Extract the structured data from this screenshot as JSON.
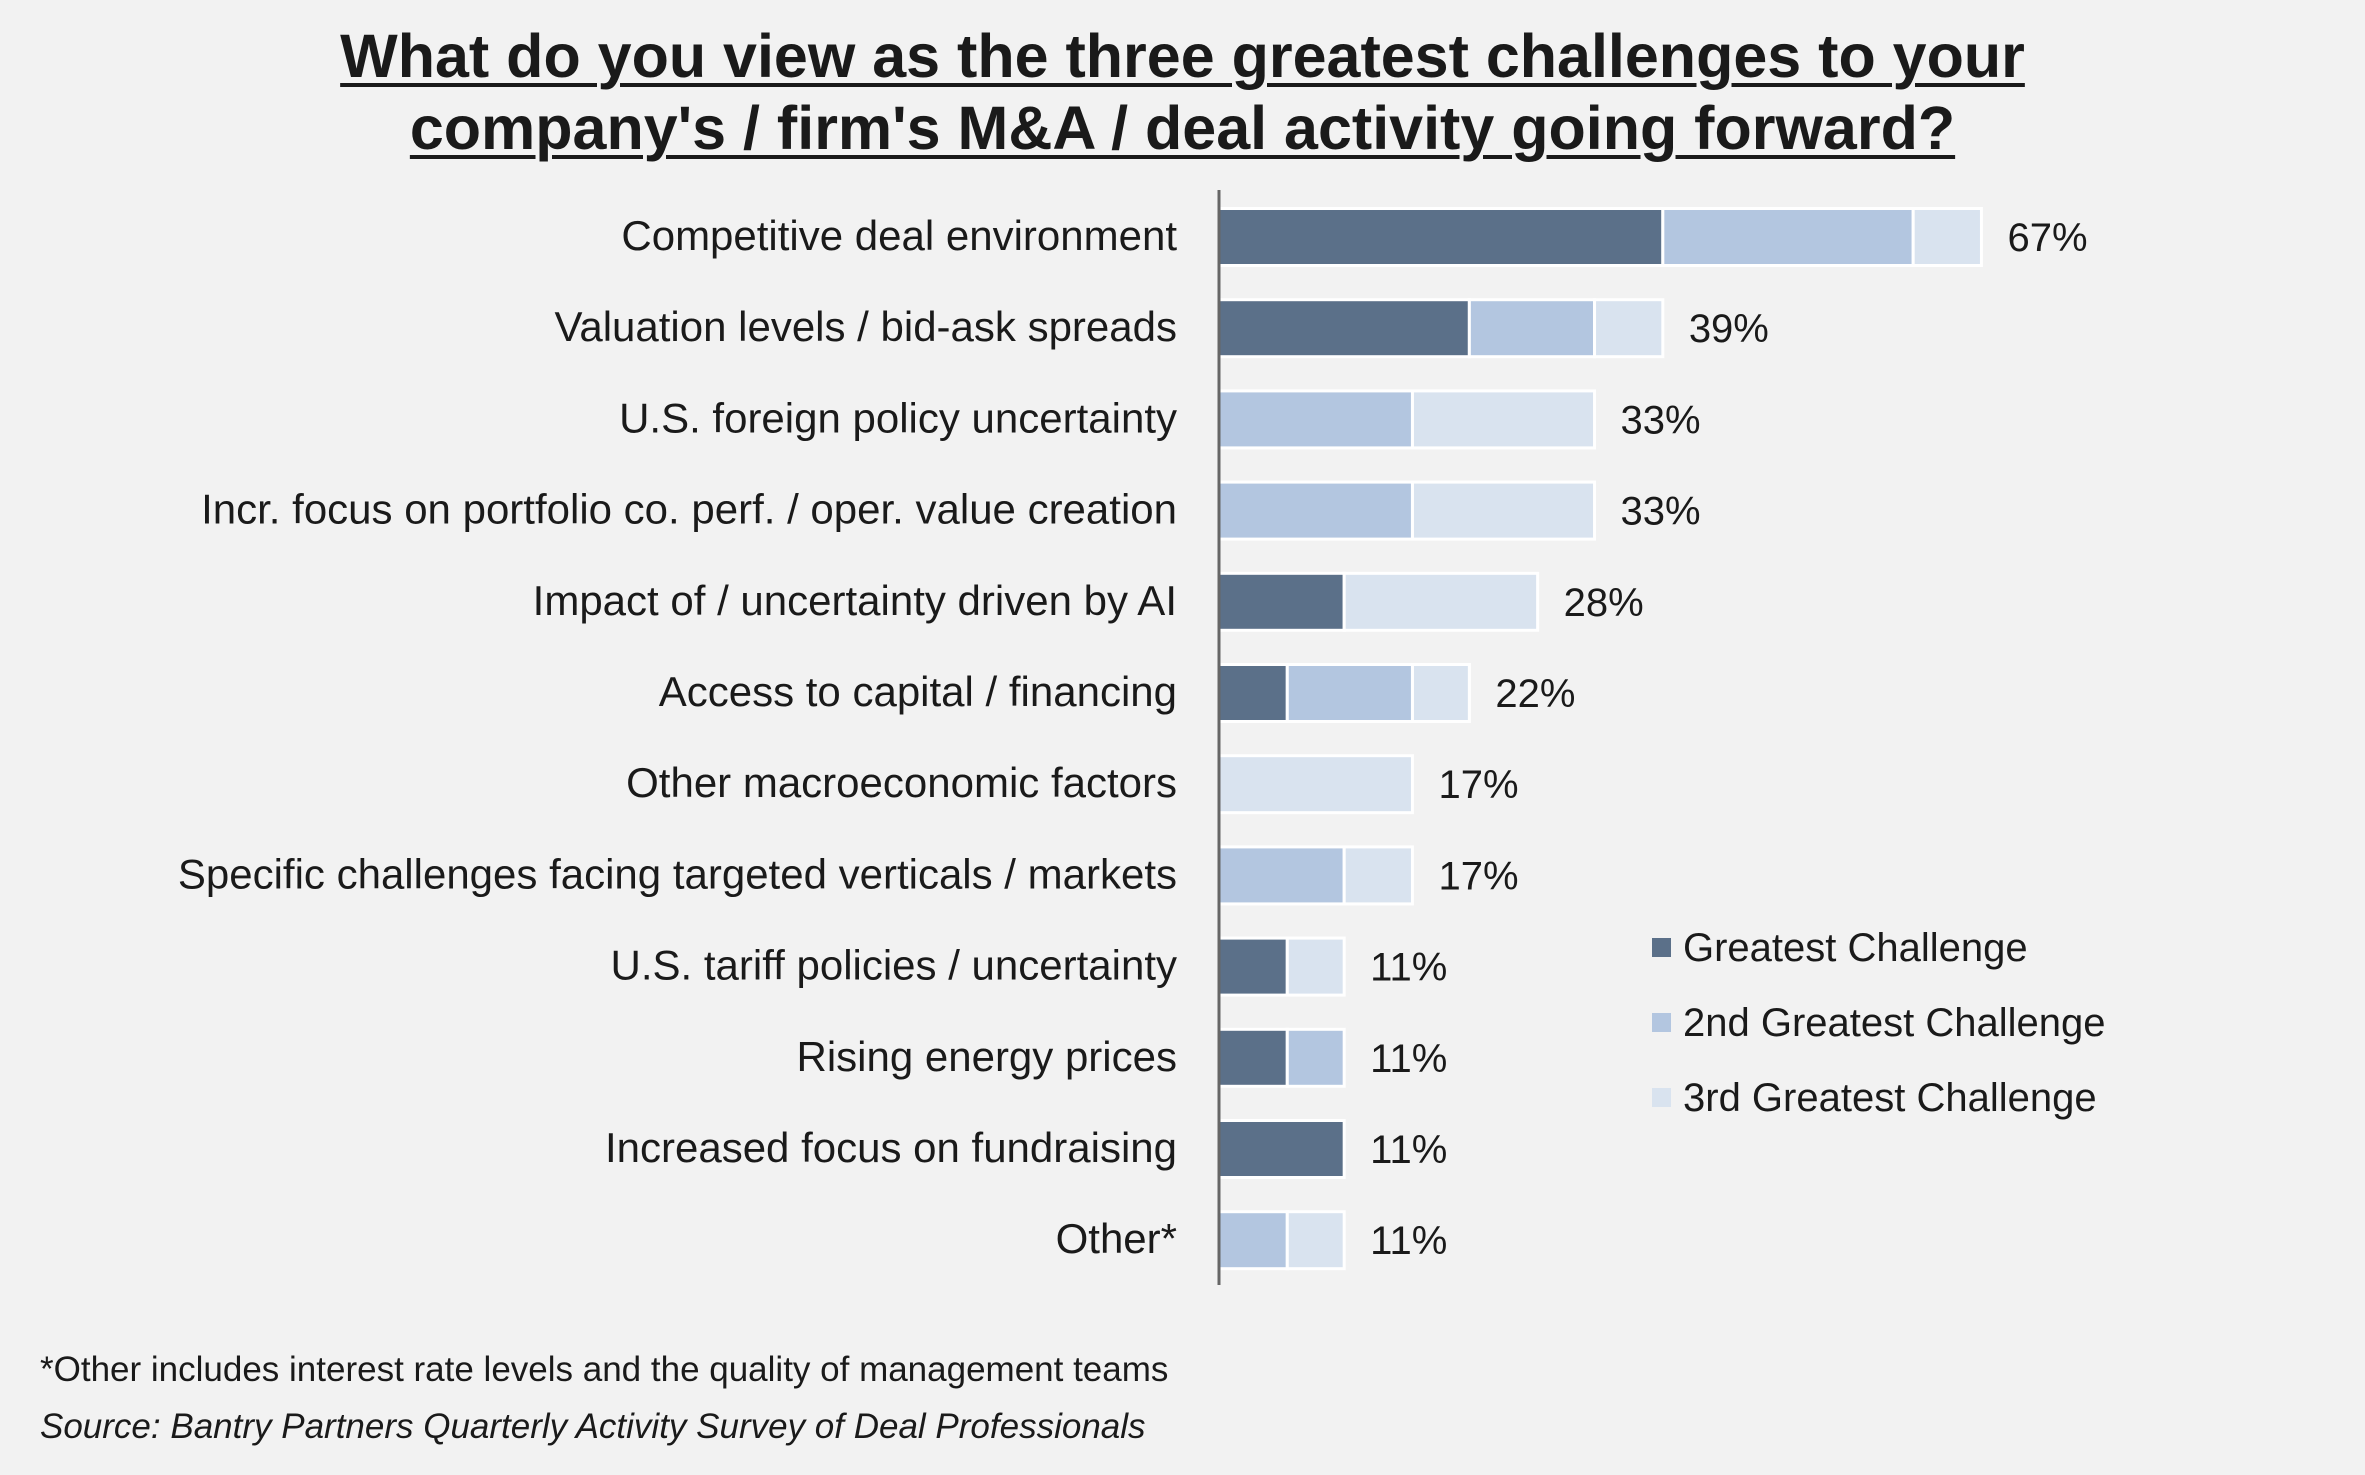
{
  "chart_data": {
    "type": "bar",
    "orientation": "horizontal",
    "stacked": true,
    "title_lines": [
      "What do you view as the three greatest challenges to your",
      "company's / firm's M&A / deal activity going forward?"
    ],
    "categories": [
      "Competitive deal environment",
      "Valuation levels / bid-ask spreads",
      "U.S. foreign policy uncertainty",
      "Incr. focus on portfolio co. perf. / oper. value creation",
      "Impact of / uncertainty driven by AI",
      "Access to capital / financing",
      "Other macroeconomic factors",
      "Specific challenges facing targeted verticals / markets",
      "U.S. tariff policies / uncertainty",
      "Rising energy prices",
      "Increased focus on fundraising",
      "Other*"
    ],
    "series": [
      {
        "name": "Greatest Challenge",
        "color": "#5b7089",
        "values": [
          39,
          22,
          0,
          0,
          11,
          6,
          0,
          0,
          6,
          6,
          11,
          0
        ]
      },
      {
        "name": "2nd Greatest Challenge",
        "color": "#b3c6e0",
        "values": [
          22,
          11,
          17,
          17,
          0,
          11,
          0,
          11,
          0,
          5,
          0,
          6
        ]
      },
      {
        "name": "3rd Greatest Challenge",
        "color": "#d9e3ef",
        "values": [
          6,
          6,
          16,
          16,
          17,
          5,
          17,
          6,
          5,
          0,
          0,
          5
        ]
      }
    ],
    "totals": [
      "67%",
      "39%",
      "33%",
      "33%",
      "28%",
      "22%",
      "17%",
      "17%",
      "11%",
      "11%",
      "11%",
      "11%"
    ],
    "xlim": [
      0,
      100
    ],
    "grid": false,
    "legend_position": "right"
  },
  "footnote": "*Other includes interest rate levels and the quality of management teams",
  "source": "Source: Bantry Partners Quarterly Activity Survey of Deal Professionals"
}
